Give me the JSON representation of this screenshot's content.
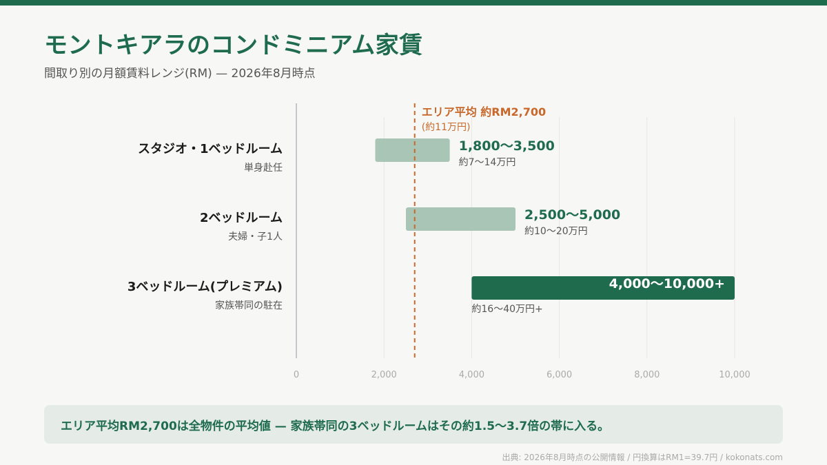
{
  "header": {
    "title": "モントキアラのコンドミニアム家賃",
    "subtitle": "間取り別の月額賃料レンジ(RM) — 2026年8月時点"
  },
  "colors": {
    "accent": "#1e6b4d",
    "bar_light": "#a8c5b6",
    "bar_dark": "#1e6b4d",
    "average_line": "#c8682a"
  },
  "chart_data": {
    "type": "bar",
    "orientation": "horizontal-range",
    "title": "モントキアラのコンドミニアム家賃",
    "subtitle": "間取り別の月額賃料レンジ(RM) — 2026年8月時点",
    "xlim": [
      0,
      10000
    ],
    "xticks": [
      0,
      2000,
      4000,
      6000,
      8000,
      10000
    ],
    "xtick_labels": [
      "0",
      "2,000",
      "4,000",
      "6,000",
      "8,000",
      "10,000"
    ],
    "grid": true,
    "categories": [
      {
        "label": "スタジオ・1ベッドルーム",
        "sublabel": "単身赴任",
        "low": 1800,
        "high": 3500,
        "range_label": "1,800〜3,500",
        "yen_label": "約7〜14万円",
        "highlight": false
      },
      {
        "label": "2ベッドルーム",
        "sublabel": "夫婦・子1人",
        "low": 2500,
        "high": 5000,
        "range_label": "2,500〜5,000",
        "yen_label": "約10〜20万円",
        "highlight": false
      },
      {
        "label": "3ベッドルーム(プレミアム)",
        "sublabel": "家族帯同の駐在",
        "low": 4000,
        "high": 10000,
        "range_label": "4,000〜10,000+",
        "yen_label": "約16〜40万円+",
        "highlight": true
      }
    ],
    "reference_line": {
      "value": 2700,
      "label": "エリア平均 約RM2,700",
      "sublabel": "(約11万円)"
    }
  },
  "callout": {
    "text": "エリア平均RM2,700は全物件の平均値 — 家族帯同の3ベッドルームはその約1.5〜3.7倍の帯に入る。"
  },
  "footer": {
    "source": "出典: 2026年8月時点の公開情報 / 円換算はRM1=39.7円 / kokonats.com"
  }
}
